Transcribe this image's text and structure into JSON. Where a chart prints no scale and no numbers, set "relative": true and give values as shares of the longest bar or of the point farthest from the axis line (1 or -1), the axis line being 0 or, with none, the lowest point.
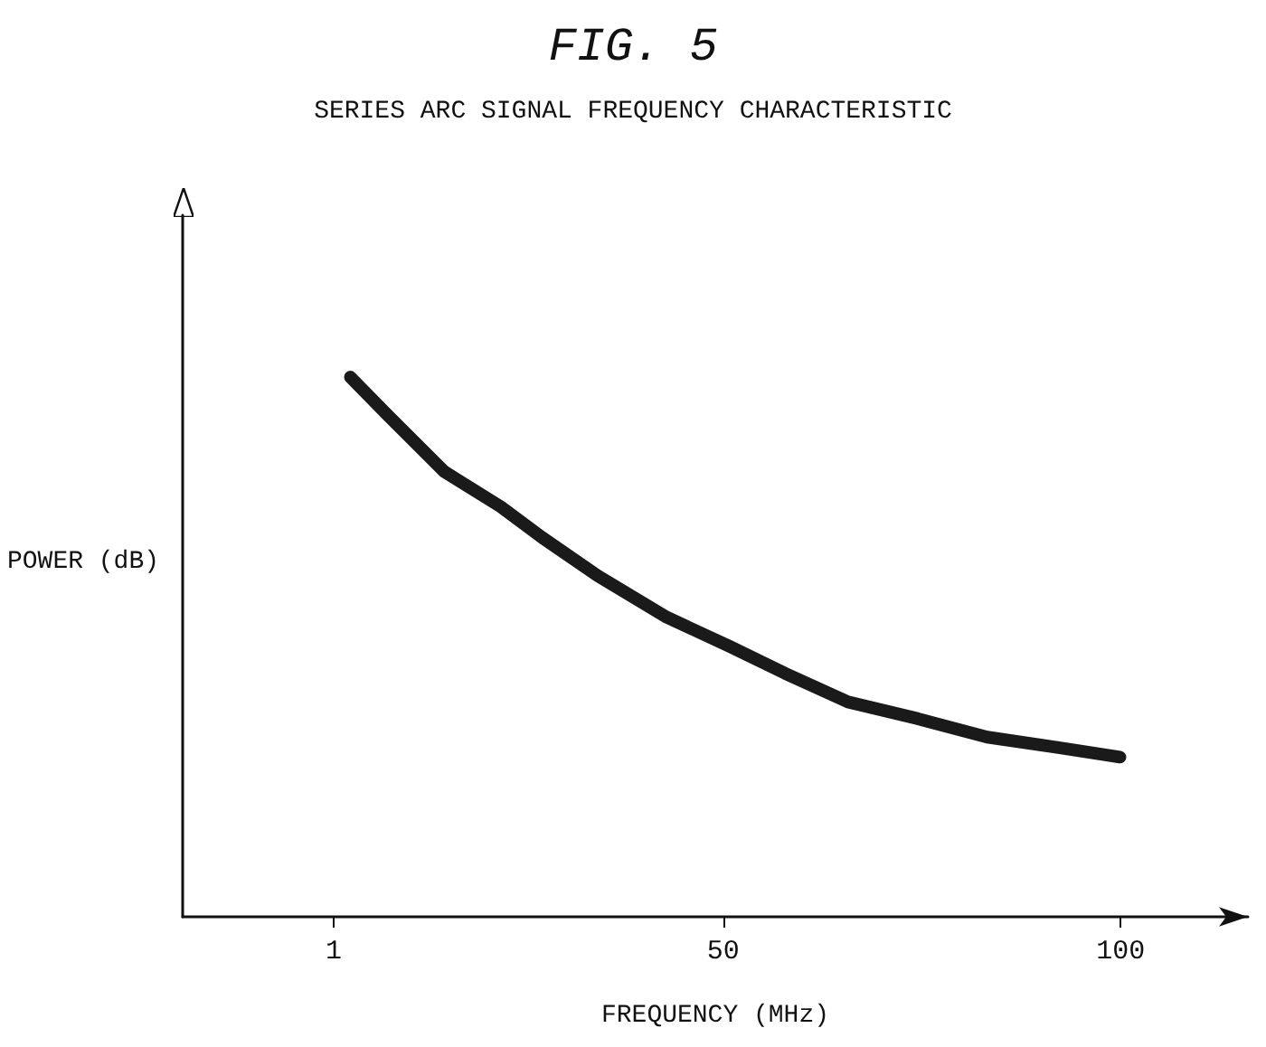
{
  "chart_data": {
    "type": "line",
    "title": "FIG. 5",
    "subtitle": "SERIES ARC SIGNAL FREQUENCY CHARACTERISTIC",
    "xlabel": "FREQUENCY (MHz)",
    "ylabel": "POWER (dB)",
    "relative": true,
    "x": [
      3.1,
      7.9,
      14.9,
      22,
      27.2,
      34.2,
      42.9,
      50.8,
      57.8,
      65.7,
      74.5,
      83.2,
      92,
      99.9
    ],
    "series": [
      {
        "color": "#1a1a1a",
        "values": [
          1,
          0.928,
          0.825,
          0.76,
          0.703,
          0.632,
          0.555,
          0.501,
          0.451,
          0.398,
          0.367,
          0.333,
          0.314,
          0.296
        ]
      }
    ],
    "xlim": [
      -18,
      116
    ],
    "xticks": [
      1,
      50,
      100
    ],
    "grid": false,
    "line_style": "solid"
  }
}
